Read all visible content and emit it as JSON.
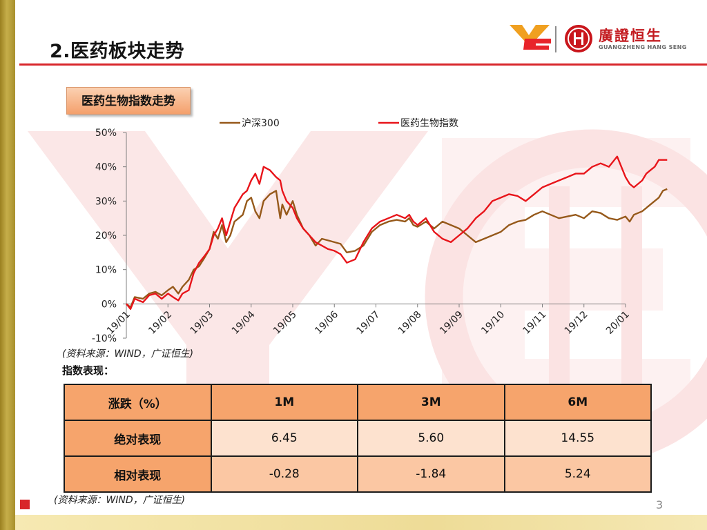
{
  "page": {
    "title": "2.医药板块走势",
    "section_label": "医药生物指数走势",
    "chart_source": "(资料来源：WIND，广证恒生)",
    "perf_title": "指数表现：",
    "table_source": "(资料来源：WIND，广证恒生)",
    "page_number": "3"
  },
  "logo": {
    "name_cn": "廣證恒生",
    "name_en": "GUANGZHENG HANG SENG",
    "brand_color": "#c31a1f",
    "accent_color": "#f0a020"
  },
  "colors": {
    "accent_red": "#d8262a",
    "table_header": "#f6a46c",
    "table_light": "#fde2cf",
    "table_mid": "#fbc7a3",
    "section_label": "#f4a06c"
  },
  "table": {
    "header": [
      "涨跌（%）",
      "1M",
      "3M",
      "6M"
    ],
    "rows": [
      {
        "label": "绝对表现",
        "values": [
          "6.45",
          "5.60",
          "14.55"
        ]
      },
      {
        "label": "相对表现",
        "values": [
          "-0.28",
          "-1.84",
          "5.24"
        ]
      }
    ]
  },
  "chart_data": {
    "type": "line",
    "ylim": [
      -10,
      50
    ],
    "y_ticks": [
      "-10%",
      "0%",
      "10%",
      "20%",
      "30%",
      "40%",
      "50%"
    ],
    "x_ticks": [
      "19/01",
      "19/02",
      "19/03",
      "19/04",
      "19/05",
      "19/06",
      "19/07",
      "19/08",
      "19/09",
      "19/10",
      "19/11",
      "19/12",
      "20/01"
    ],
    "legend_position": "top",
    "series": [
      {
        "name": "沪深300",
        "color": "#96591a",
        "x": [
          0,
          0.1,
          0.2,
          0.4,
          0.55,
          0.7,
          0.85,
          1,
          1.12,
          1.25,
          1.35,
          1.5,
          1.62,
          1.75,
          1.88,
          2,
          2.1,
          2.2,
          2.3,
          2.4,
          2.5,
          2.6,
          2.7,
          2.8,
          2.9,
          3,
          3.1,
          3.2,
          3.3,
          3.45,
          3.6,
          3.7,
          3.75,
          3.85,
          4,
          4.1,
          4.25,
          4.4,
          4.55,
          4.7,
          4.85,
          5,
          5.15,
          5.3,
          5.5,
          5.7,
          5.9,
          6.1,
          6.3,
          6.5,
          6.7,
          6.8,
          6.9,
          7,
          7.2,
          7.4,
          7.6,
          7.8,
          8,
          8.2,
          8.4,
          8.6,
          8.8,
          9,
          9.2,
          9.4,
          9.6,
          9.8,
          10,
          10.2,
          10.4,
          10.6,
          10.8,
          11,
          11.2,
          11.4,
          11.6,
          11.8,
          12,
          12.1,
          12.2,
          12.3,
          12.4,
          12.5,
          12.6,
          12.7,
          12.8,
          12.9,
          13
        ],
        "values": [
          0,
          -1,
          2,
          1.5,
          3,
          3.5,
          2.5,
          4,
          5,
          3,
          5,
          7,
          10,
          11,
          13.5,
          16,
          21,
          19,
          23,
          18,
          20,
          24,
          25,
          26,
          30,
          31,
          27,
          25,
          30,
          32,
          33,
          25,
          29,
          26,
          30,
          26,
          22,
          20,
          17,
          19,
          18.5,
          18,
          17.5,
          15,
          15.5,
          17,
          21,
          23,
          24,
          24.5,
          24,
          25,
          23,
          22.5,
          24,
          22,
          24,
          23,
          22,
          20,
          18,
          19,
          20,
          21,
          23,
          24,
          24.5,
          26,
          27,
          26,
          25,
          25.5,
          26,
          25,
          27,
          26.5,
          25,
          24.5,
          25.5,
          24,
          26,
          26.5,
          27,
          28,
          29,
          30,
          31,
          33,
          33.5
        ]
      },
      {
        "name": "医药生物指数",
        "color": "#e8141a",
        "x": [
          0,
          0.1,
          0.2,
          0.4,
          0.55,
          0.7,
          0.85,
          1,
          1.12,
          1.25,
          1.35,
          1.5,
          1.62,
          1.75,
          1.88,
          2,
          2.1,
          2.2,
          2.3,
          2.4,
          2.5,
          2.6,
          2.7,
          2.8,
          2.9,
          3,
          3.1,
          3.2,
          3.3,
          3.45,
          3.6,
          3.7,
          3.75,
          3.85,
          4,
          4.1,
          4.25,
          4.4,
          4.55,
          4.7,
          4.85,
          5,
          5.15,
          5.3,
          5.5,
          5.7,
          5.9,
          6.1,
          6.3,
          6.5,
          6.7,
          6.8,
          6.9,
          7,
          7.2,
          7.4,
          7.6,
          7.8,
          8,
          8.2,
          8.4,
          8.6,
          8.8,
          9,
          9.2,
          9.4,
          9.6,
          9.8,
          10,
          10.2,
          10.4,
          10.6,
          10.8,
          11,
          11.2,
          11.4,
          11.6,
          11.8,
          12,
          12.1,
          12.2,
          12.3,
          12.4,
          12.5,
          12.6,
          12.7,
          12.8,
          12.9,
          13
        ],
        "values": [
          0,
          -1.5,
          1.5,
          0.5,
          2.5,
          3,
          1.5,
          3,
          2,
          1,
          3,
          4,
          9,
          12,
          14,
          16,
          20,
          22,
          25,
          20,
          24,
          28,
          30,
          32,
          33,
          36,
          38,
          35,
          40,
          39,
          37,
          36,
          33,
          30,
          28,
          25,
          22,
          20,
          18,
          17,
          16,
          15.5,
          14.5,
          12,
          13,
          18,
          22,
          24,
          25,
          26,
          25,
          26,
          24,
          23,
          25,
          21,
          19,
          18,
          20,
          22,
          25,
          27,
          30,
          31,
          32,
          31.5,
          30,
          32,
          34,
          35,
          36,
          37,
          38,
          38,
          40,
          41,
          40,
          43,
          37,
          35,
          34,
          35,
          36,
          38,
          39,
          40,
          42,
          42,
          42
        ]
      }
    ]
  }
}
